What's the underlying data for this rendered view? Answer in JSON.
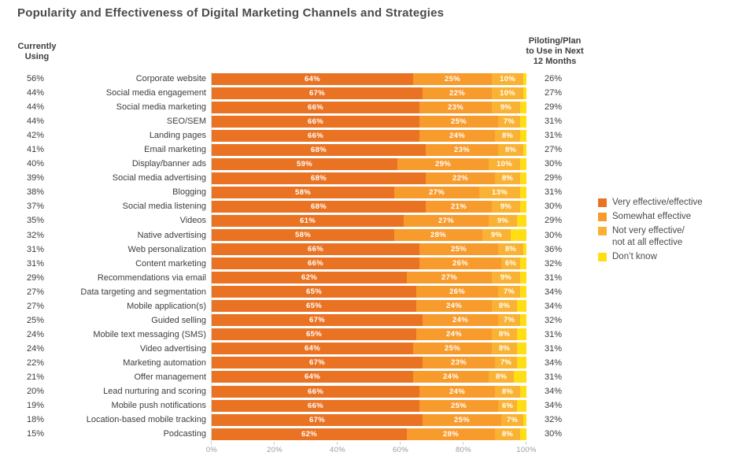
{
  "title": "Popularity and Effectiveness of Digital Marketing Channels and Strategies",
  "left_header": {
    "line1": "Currently",
    "line2": "Using"
  },
  "right_header": {
    "line1": "Piloting/Plan",
    "line2": "to Use in Next",
    "line3": "12 Months"
  },
  "colors": {
    "very_effective": "#EA7323",
    "somewhat_effective": "#F89B2D",
    "not_very_effective": "#F9B233",
    "dont_know": "#FFDF14"
  },
  "legend": [
    {
      "name": "very_effective",
      "label": "Very effective/effective",
      "color": "#EA7323"
    },
    {
      "name": "somewhat_effective",
      "label": "Somewhat effective",
      "color": "#F89B2D"
    },
    {
      "name": "not_very_effective",
      "label": "Not very effective/\nnot at all effective",
      "color": "#F9B233"
    },
    {
      "name": "dont_know",
      "label": "Don’t know",
      "color": "#FFDF14"
    }
  ],
  "chart_data": {
    "type": "bar",
    "orientation": "horizontal",
    "stacked": true,
    "title": "Popularity and Effectiveness of Digital Marketing Channels and Strategies",
    "xlim": [
      0,
      100
    ],
    "x_ticks": [
      "0%",
      "20%",
      "40%",
      "60%",
      "80%",
      "100%"
    ],
    "legend_position": "right",
    "series_names": [
      "Very effective/effective",
      "Somewhat effective",
      "Not very effective/not at all effective",
      "Don't know"
    ],
    "segment_labels_shown": [
      "very_effective",
      "somewhat_effective",
      "not_very_effective"
    ],
    "rows": [
      {
        "currently_using": 56,
        "label": "Corporate website",
        "very_effective": 64,
        "somewhat_effective": 25,
        "not_very_effective": 10,
        "dont_know": 1,
        "piloting_next_12_months": 26
      },
      {
        "currently_using": 44,
        "label": "Social media engagement",
        "very_effective": 67,
        "somewhat_effective": 22,
        "not_very_effective": 10,
        "dont_know": 1,
        "piloting_next_12_months": 27
      },
      {
        "currently_using": 44,
        "label": "Social media marketing",
        "very_effective": 66,
        "somewhat_effective": 23,
        "not_very_effective": 9,
        "dont_know": 2,
        "piloting_next_12_months": 29
      },
      {
        "currently_using": 44,
        "label": "SEO/SEM",
        "very_effective": 66,
        "somewhat_effective": 25,
        "not_very_effective": 7,
        "dont_know": 2,
        "piloting_next_12_months": 31
      },
      {
        "currently_using": 42,
        "label": "Landing pages",
        "very_effective": 66,
        "somewhat_effective": 24,
        "not_very_effective": 8,
        "dont_know": 2,
        "piloting_next_12_months": 31
      },
      {
        "currently_using": 41,
        "label": "Email marketing",
        "very_effective": 68,
        "somewhat_effective": 23,
        "not_very_effective": 8,
        "dont_know": 1,
        "piloting_next_12_months": 27
      },
      {
        "currently_using": 40,
        "label": "Display/banner ads",
        "very_effective": 59,
        "somewhat_effective": 29,
        "not_very_effective": 10,
        "dont_know": 2,
        "piloting_next_12_months": 30
      },
      {
        "currently_using": 39,
        "label": "Social media advertising",
        "very_effective": 68,
        "somewhat_effective": 22,
        "not_very_effective": 8,
        "dont_know": 2,
        "piloting_next_12_months": 29
      },
      {
        "currently_using": 38,
        "label": "Blogging",
        "very_effective": 58,
        "somewhat_effective": 27,
        "not_very_effective": 13,
        "dont_know": 2,
        "piloting_next_12_months": 31
      },
      {
        "currently_using": 37,
        "label": "Social media listening",
        "very_effective": 68,
        "somewhat_effective": 21,
        "not_very_effective": 9,
        "dont_know": 2,
        "piloting_next_12_months": 30
      },
      {
        "currently_using": 35,
        "label": "Videos",
        "very_effective": 61,
        "somewhat_effective": 27,
        "not_very_effective": 9,
        "dont_know": 3,
        "piloting_next_12_months": 29
      },
      {
        "currently_using": 32,
        "label": "Native advertising",
        "very_effective": 58,
        "somewhat_effective": 28,
        "not_very_effective": 9,
        "dont_know": 5,
        "piloting_next_12_months": 30
      },
      {
        "currently_using": 31,
        "label": "Web personalization",
        "very_effective": 66,
        "somewhat_effective": 25,
        "not_very_effective": 8,
        "dont_know": 1,
        "piloting_next_12_months": 36
      },
      {
        "currently_using": 31,
        "label": "Content marketing",
        "very_effective": 66,
        "somewhat_effective": 26,
        "not_very_effective": 6,
        "dont_know": 2,
        "piloting_next_12_months": 32
      },
      {
        "currently_using": 29,
        "label": "Recommendations via email",
        "very_effective": 62,
        "somewhat_effective": 27,
        "not_very_effective": 9,
        "dont_know": 2,
        "piloting_next_12_months": 31
      },
      {
        "currently_using": 27,
        "label": "Data targeting and segmentation",
        "very_effective": 65,
        "somewhat_effective": 26,
        "not_very_effective": 7,
        "dont_know": 2,
        "piloting_next_12_months": 34
      },
      {
        "currently_using": 27,
        "label": "Mobile application(s)",
        "very_effective": 65,
        "somewhat_effective": 24,
        "not_very_effective": 8,
        "dont_know": 3,
        "piloting_next_12_months": 34
      },
      {
        "currently_using": 25,
        "label": "Guided selling",
        "very_effective": 67,
        "somewhat_effective": 24,
        "not_very_effective": 7,
        "dont_know": 2,
        "piloting_next_12_months": 32
      },
      {
        "currently_using": 24,
        "label": "Mobile text messaging (SMS)",
        "very_effective": 65,
        "somewhat_effective": 24,
        "not_very_effective": 8,
        "dont_know": 3,
        "piloting_next_12_months": 31
      },
      {
        "currently_using": 24,
        "label": "Video advertising",
        "very_effective": 64,
        "somewhat_effective": 25,
        "not_very_effective": 8,
        "dont_know": 3,
        "piloting_next_12_months": 31
      },
      {
        "currently_using": 22,
        "label": "Marketing automation",
        "very_effective": 67,
        "somewhat_effective": 23,
        "not_very_effective": 7,
        "dont_know": 3,
        "piloting_next_12_months": 34
      },
      {
        "currently_using": 21,
        "label": "Offer management",
        "very_effective": 64,
        "somewhat_effective": 24,
        "not_very_effective": 8,
        "dont_know": 4,
        "piloting_next_12_months": 31
      },
      {
        "currently_using": 20,
        "label": "Lead nurturing and scoring",
        "very_effective": 66,
        "somewhat_effective": 24,
        "not_very_effective": 8,
        "dont_know": 2,
        "piloting_next_12_months": 34
      },
      {
        "currently_using": 19,
        "label": "Mobile push notifications",
        "very_effective": 66,
        "somewhat_effective": 25,
        "not_very_effective": 6,
        "dont_know": 3,
        "piloting_next_12_months": 34
      },
      {
        "currently_using": 18,
        "label": "Location-based mobile tracking",
        "very_effective": 67,
        "somewhat_effective": 25,
        "not_very_effective": 7,
        "dont_know": 1,
        "piloting_next_12_months": 32
      },
      {
        "currently_using": 15,
        "label": "Podcasting",
        "very_effective": 62,
        "somewhat_effective": 28,
        "not_very_effective": 8,
        "dont_know": 2,
        "piloting_next_12_months": 30
      }
    ]
  }
}
